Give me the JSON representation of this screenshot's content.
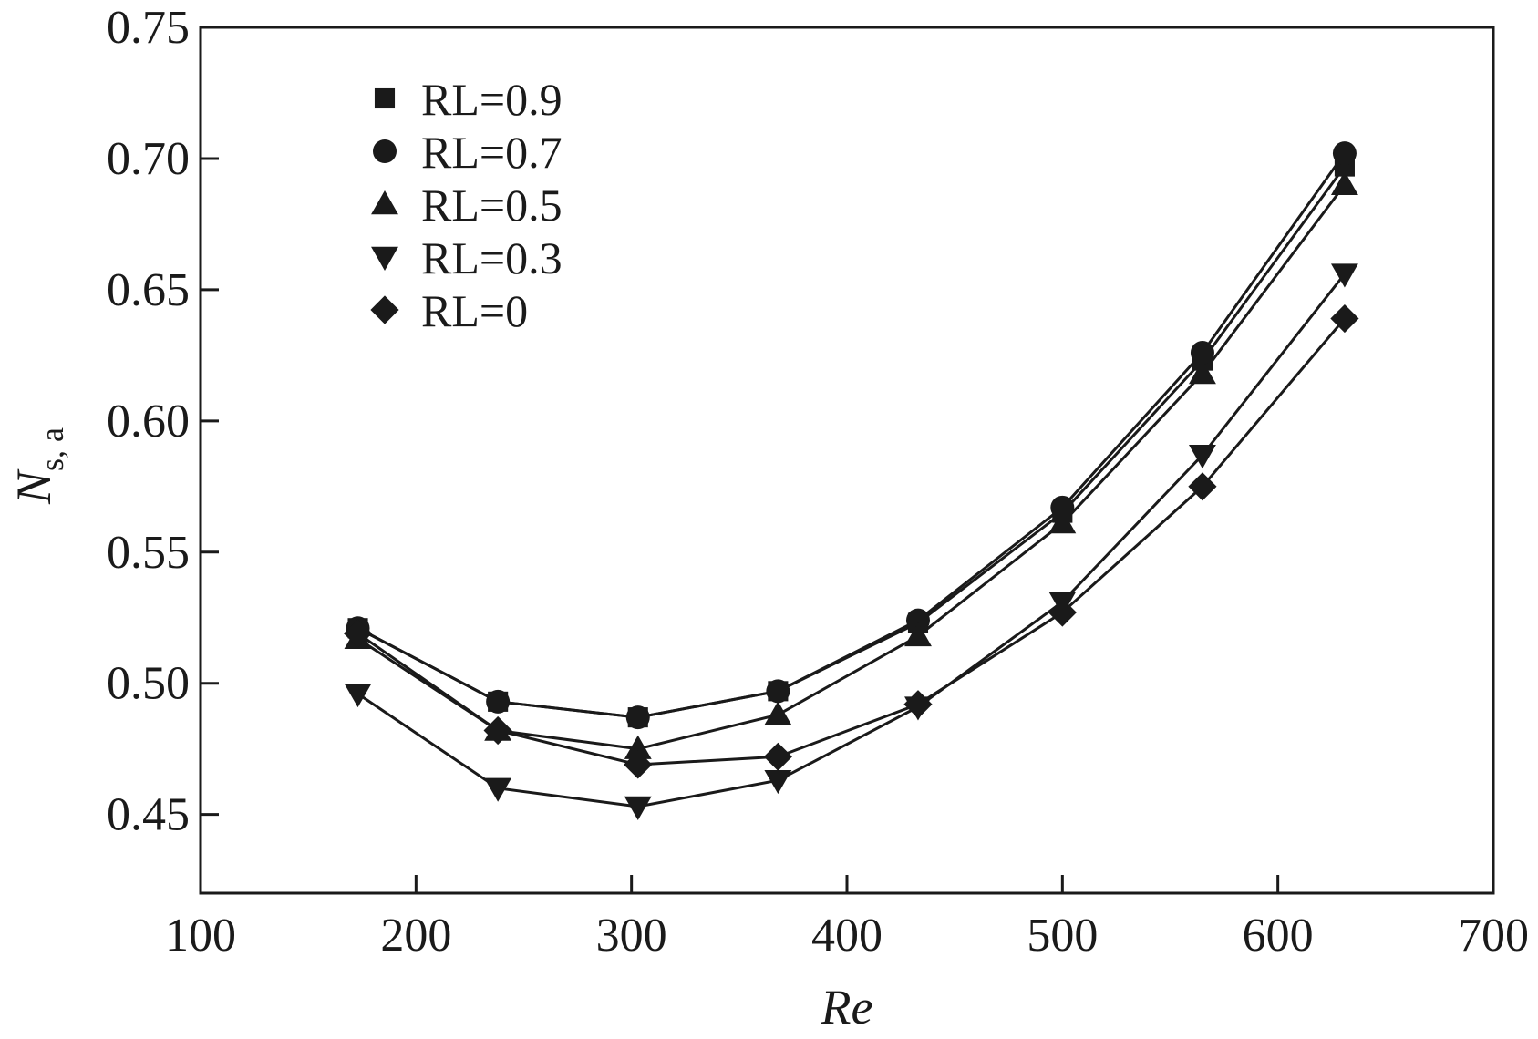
{
  "chart_data": {
    "type": "line",
    "xlabel": "Re",
    "ylabel": "N",
    "ylabel_subscript": "s, a",
    "xlim": [
      100,
      700
    ],
    "ylim": [
      0.42,
      0.75
    ],
    "xticks": [
      "100",
      "200",
      "300",
      "400",
      "500",
      "600",
      "700"
    ],
    "yticks": [
      "0.45",
      "0.50",
      "0.55",
      "0.60",
      "0.65",
      "0.70",
      "0.75"
    ],
    "grid": false,
    "legend_position": "top-left",
    "series": [
      {
        "name": "RL=0.9",
        "marker": "square",
        "x": [
          173,
          238,
          303,
          368,
          433,
          500,
          565,
          631
        ],
        "y": [
          0.521,
          0.493,
          0.487,
          0.497,
          0.523,
          0.565,
          0.623,
          0.697
        ]
      },
      {
        "name": "RL=0.7",
        "marker": "circle",
        "x": [
          173,
          238,
          303,
          368,
          433,
          500,
          565,
          631
        ],
        "y": [
          0.521,
          0.493,
          0.487,
          0.497,
          0.524,
          0.567,
          0.626,
          0.702
        ]
      },
      {
        "name": "RL=0.5",
        "marker": "triangle-up",
        "x": [
          173,
          238,
          303,
          368,
          433,
          500,
          565,
          631
        ],
        "y": [
          0.517,
          0.482,
          0.475,
          0.488,
          0.518,
          0.561,
          0.618,
          0.69
        ]
      },
      {
        "name": "RL=0.3",
        "marker": "triangle-down",
        "x": [
          173,
          238,
          303,
          368,
          433,
          500,
          565,
          631
        ],
        "y": [
          0.496,
          0.46,
          0.453,
          0.463,
          0.491,
          0.531,
          0.587,
          0.656
        ]
      },
      {
        "name": "RL=0",
        "marker": "diamond",
        "x": [
          173,
          238,
          303,
          368,
          433,
          500,
          565,
          631
        ],
        "y": [
          0.519,
          0.482,
          0.469,
          0.472,
          0.492,
          0.527,
          0.575,
          0.639
        ]
      }
    ]
  }
}
